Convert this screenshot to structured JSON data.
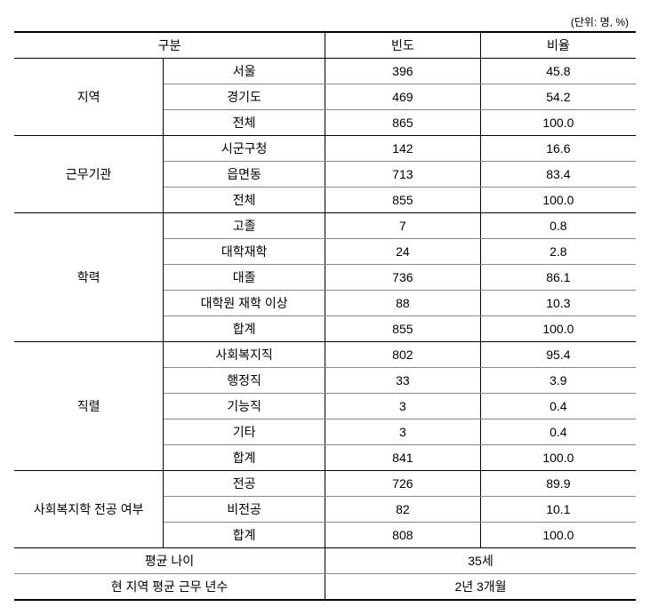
{
  "unit_label": "(단위: 명, %)",
  "headers": {
    "gubun": "구분",
    "bindo": "빈도",
    "biyul": "비율"
  },
  "sections": [
    {
      "category": "지역",
      "rows": [
        {
          "label": "서울",
          "freq": "396",
          "ratio": "45.8"
        },
        {
          "label": "경기도",
          "freq": "469",
          "ratio": "54.2"
        },
        {
          "label": "전체",
          "freq": "865",
          "ratio": "100.0"
        }
      ]
    },
    {
      "category": "근무기관",
      "rows": [
        {
          "label": "시군구청",
          "freq": "142",
          "ratio": "16.6"
        },
        {
          "label": "읍면동",
          "freq": "713",
          "ratio": "83.4"
        },
        {
          "label": "전체",
          "freq": "855",
          "ratio": "100.0"
        }
      ]
    },
    {
      "category": "학력",
      "rows": [
        {
          "label": "고졸",
          "freq": "7",
          "ratio": "0.8"
        },
        {
          "label": "대학재학",
          "freq": "24",
          "ratio": "2.8"
        },
        {
          "label": "대졸",
          "freq": "736",
          "ratio": "86.1"
        },
        {
          "label": "대학원 재학 이상",
          "freq": "88",
          "ratio": "10.3"
        },
        {
          "label": "합계",
          "freq": "855",
          "ratio": "100.0"
        }
      ]
    },
    {
      "category": "직렬",
      "rows": [
        {
          "label": "사회복지직",
          "freq": "802",
          "ratio": "95.4"
        },
        {
          "label": "행정직",
          "freq": "33",
          "ratio": "3.9"
        },
        {
          "label": "기능직",
          "freq": "3",
          "ratio": "0.4"
        },
        {
          "label": "기타",
          "freq": "3",
          "ratio": "0.4"
        },
        {
          "label": "합계",
          "freq": "841",
          "ratio": "100.0"
        }
      ]
    },
    {
      "category": "사회복지학 전공 여부",
      "rows": [
        {
          "label": "전공",
          "freq": "726",
          "ratio": "89.9"
        },
        {
          "label": "비전공",
          "freq": "82",
          "ratio": "10.1"
        },
        {
          "label": "합계",
          "freq": "808",
          "ratio": "100.0"
        }
      ]
    }
  ],
  "summary_rows": [
    {
      "label": "평균 나이",
      "value": "35세"
    },
    {
      "label": "현 지역 평균 근무 년수",
      "value": "2년 3개월"
    }
  ]
}
